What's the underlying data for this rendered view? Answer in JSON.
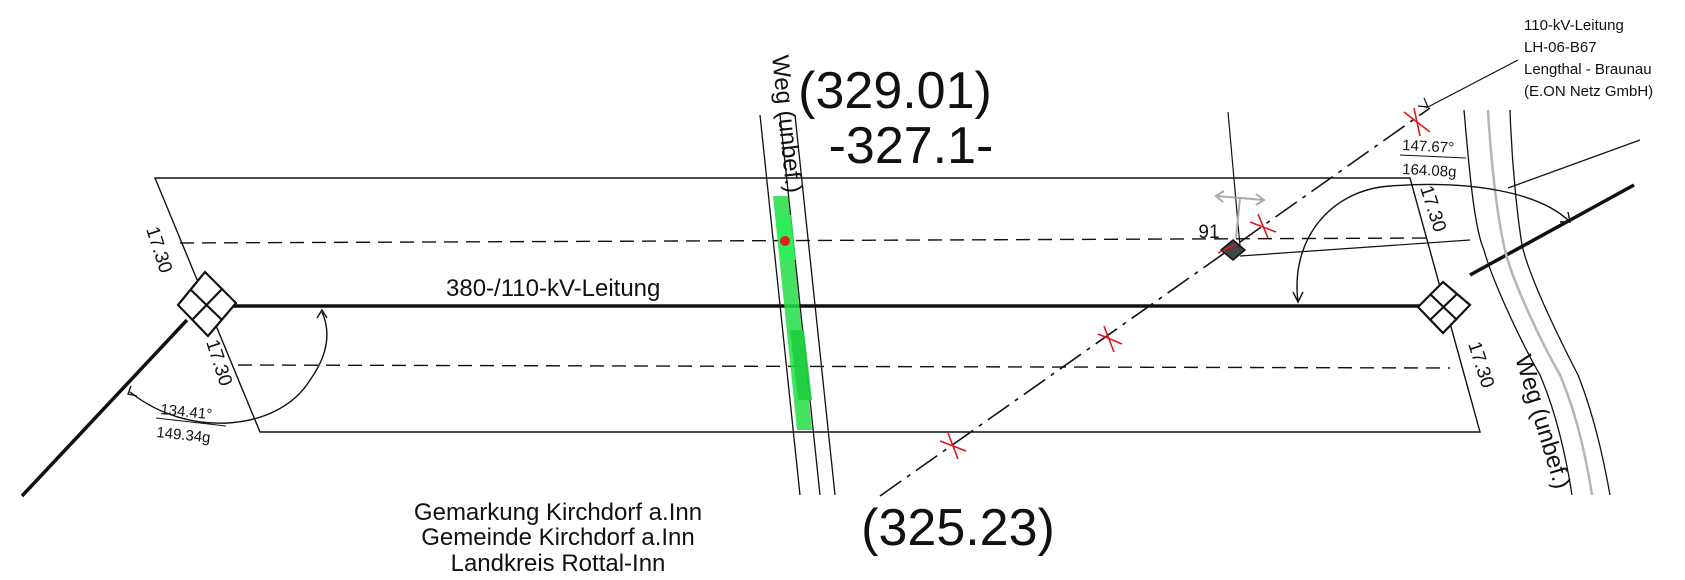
{
  "labels": {
    "plan_no_upper": "(329.01)",
    "plan_no_middle": "-327.1-",
    "plan_no_lower": "(325.23)",
    "line_main": "380-/110-kV-Leitung",
    "road_left": "Weg (unbef.)",
    "road_right": "Weg (unbef.)",
    "crossing_line": [
      "110-kV-Leitung",
      "LH-06-B67",
      "Lengthal - Braunau",
      "(E.ON Netz GmbH)"
    ],
    "gemarkung": [
      "Gemarkung Kirchdorf a.Inn",
      "Gemeinde Kirchdorf a.Inn",
      "Landkreis Rottal-Inn"
    ],
    "point_no": "91"
  },
  "measurements": {
    "width_tl": "17.30",
    "width_bl": "17.30",
    "width_tr": "17.30",
    "width_br": "17.30",
    "angle_left_deg": "134.41°",
    "angle_left_gon": "149.34g",
    "angle_right_deg": "147.67°",
    "angle_right_gon": "164.08g"
  },
  "colors": {
    "line": "#111111",
    "crossing_marker": "#e0161b",
    "vegetation": "#22dd44",
    "road_right_gray": "#b5b5b5"
  }
}
